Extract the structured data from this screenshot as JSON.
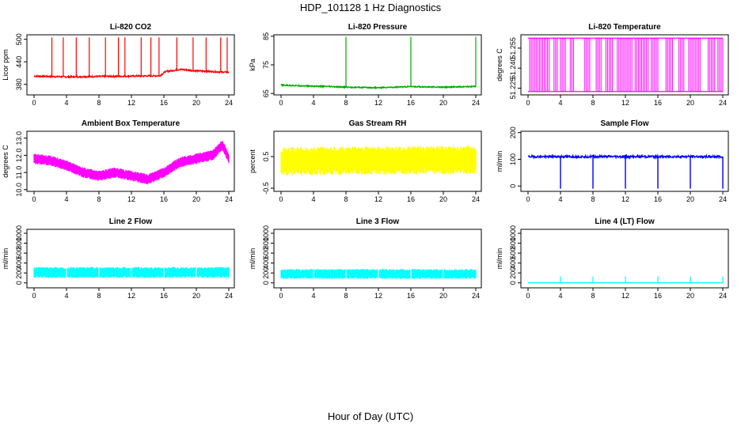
{
  "figure": {
    "title": "HDP_101128  1 Hz Diagnostics",
    "xlabel": "Hour of Day (UTC)"
  },
  "chart_data": [
    {
      "type": "line",
      "title": "Li-820 CO2",
      "ylabel": "Licor ppm",
      "color": "#ff0000",
      "xlim": [
        0,
        24
      ],
      "ylim": [
        352,
        512
      ],
      "xticks": [
        "0",
        "4",
        "8",
        "12",
        "16",
        "20",
        "24"
      ],
      "yticks": [
        "380",
        "440",
        "500"
      ],
      "baseline": [
        [
          0,
          402
        ],
        [
          4,
          400
        ],
        [
          8,
          401
        ],
        [
          12,
          402
        ],
        [
          15.5,
          403
        ],
        [
          16.2,
          414
        ],
        [
          18,
          420
        ],
        [
          20,
          416
        ],
        [
          24,
          412
        ]
      ],
      "spikes": [
        2.2,
        3.6,
        5.2,
        6.8,
        8.8,
        10.4,
        11.2,
        13.2,
        14.4,
        15.4,
        17.6,
        19.6,
        21.2,
        23.0,
        23.8
      ],
      "spike_peak": 505,
      "noise": 2
    },
    {
      "type": "line",
      "title": "Li-820 Pressure",
      "ylabel": "kPa",
      "color": "#00aa00",
      "xlim": [
        0,
        24
      ],
      "ylim": [
        64.5,
        85.5
      ],
      "xticks": [
        "0",
        "4",
        "8",
        "12",
        "16",
        "20",
        "24"
      ],
      "yticks": [
        "65",
        "75",
        "85"
      ],
      "baseline": [
        [
          0,
          67.9
        ],
        [
          8,
          67.2
        ],
        [
          12,
          67.0
        ],
        [
          16,
          67.4
        ],
        [
          20,
          67.2
        ],
        [
          24,
          67.4
        ]
      ],
      "spikes": [
        8.0,
        16.0,
        24.0
      ],
      "spike_peak": 84.8,
      "noise": 0.2
    },
    {
      "type": "band",
      "title": "Li-820 Temperature",
      "ylabel": "degrees C",
      "color": "#ff00ff",
      "xlim": [
        0,
        24
      ],
      "ylim": [
        51.22,
        51.265
      ],
      "xticks": [
        "0",
        "4",
        "8",
        "12",
        "16",
        "20",
        "24"
      ],
      "yticks": [
        "51.225",
        "51.240",
        "51.255"
      ],
      "level_high": 51.2625,
      "level_low": 51.2225,
      "dropouts": [
        [
          0.2,
          0.8
        ],
        [
          1.0,
          1.6
        ],
        [
          1.8,
          2.6
        ],
        [
          3.2,
          3.6
        ],
        [
          4.0,
          4.6
        ],
        [
          5.2,
          5.6
        ],
        [
          7.0,
          7.6
        ],
        [
          8.4,
          9.0
        ],
        [
          9.6,
          10.4
        ],
        [
          11.0,
          12.8
        ],
        [
          13.2,
          14.8
        ],
        [
          15.2,
          16.0
        ],
        [
          17.0,
          17.8
        ],
        [
          18.6,
          19.2
        ],
        [
          19.8,
          21.2
        ],
        [
          22.2,
          23.0
        ],
        [
          23.4,
          24.0
        ]
      ]
    },
    {
      "type": "band",
      "title": "Ambient Box Temperature",
      "ylabel": "degrees C",
      "color": "#ff00ff",
      "xlim": [
        0,
        24
      ],
      "ylim": [
        9.9,
        13.4
      ],
      "xticks": [
        "0",
        "4",
        "8",
        "12",
        "16",
        "20",
        "24"
      ],
      "yticks": [
        "10.0",
        "11.0",
        "12.0",
        "13.0"
      ],
      "center": [
        [
          0,
          11.8
        ],
        [
          2,
          11.7
        ],
        [
          4,
          11.4
        ],
        [
          6,
          11.0
        ],
        [
          8,
          10.8
        ],
        [
          10,
          11.0
        ],
        [
          12,
          10.8
        ],
        [
          14,
          10.6
        ],
        [
          16,
          11.0
        ],
        [
          18,
          11.6
        ],
        [
          20,
          11.8
        ],
        [
          22,
          12.0
        ],
        [
          23.2,
          12.6
        ],
        [
          24,
          11.8
        ]
      ],
      "half_width": 0.3
    },
    {
      "type": "band",
      "title": "Gas Stream RH",
      "ylabel": "percent",
      "color": "#ffff00",
      "xlim": [
        0,
        24
      ],
      "ylim": [
        -0.6,
        1.3
      ],
      "xticks": [
        "0",
        "4",
        "8",
        "12",
        "16",
        "20",
        "24"
      ],
      "yticks": [
        "-0.5",
        "0.5"
      ],
      "center": [
        [
          0,
          0.35
        ],
        [
          24,
          0.4
        ]
      ],
      "half_width": 0.45
    },
    {
      "type": "line",
      "title": "Sample Flow",
      "ylabel": "ml/min",
      "color": "#0000ff",
      "xlim": [
        0,
        24
      ],
      "ylim": [
        -20,
        205
      ],
      "xticks": [
        "0",
        "4",
        "8",
        "12",
        "16",
        "20",
        "24"
      ],
      "yticks": [
        "0",
        "100",
        "200"
      ],
      "baseline": [
        [
          0,
          110
        ],
        [
          24,
          110
        ]
      ],
      "dips": [
        4,
        8,
        12,
        16,
        20,
        24
      ],
      "dip_value": -10,
      "noise": 4
    },
    {
      "type": "band",
      "title": "Line 2 Flow",
      "ylabel": "ml/min",
      "color": "#00ffff",
      "xlim": [
        0,
        24
      ],
      "ylim": [
        -100,
        1080
      ],
      "xticks": [
        "0",
        "4",
        "8",
        "12",
        "16",
        "20",
        "24"
      ],
      "yticks": [
        "0",
        "200",
        "400",
        "600",
        "800",
        "1000"
      ],
      "center": [
        [
          0,
          210
        ],
        [
          24,
          210
        ]
      ],
      "half_width": 110,
      "gaps": [
        4,
        8,
        12,
        16,
        20
      ]
    },
    {
      "type": "band",
      "title": "Line 3 Flow",
      "ylabel": "ml/min",
      "color": "#00ffff",
      "xlim": [
        0,
        24
      ],
      "ylim": [
        -100,
        1080
      ],
      "xticks": [
        "0",
        "4",
        "8",
        "12",
        "16",
        "20",
        "24"
      ],
      "yticks": [
        "0",
        "200",
        "400",
        "600",
        "800",
        "1000"
      ],
      "center": [
        [
          0,
          180
        ],
        [
          24,
          180
        ]
      ],
      "half_width": 100,
      "gaps": [
        4,
        8,
        12,
        16,
        20
      ]
    },
    {
      "type": "line",
      "title": "Line 4 (LT) Flow",
      "ylabel": "ml/min",
      "color": "#00ffff",
      "xlim": [
        0,
        24
      ],
      "ylim": [
        -100,
        1080
      ],
      "xticks": [
        "0",
        "4",
        "8",
        "12",
        "16",
        "20",
        "24"
      ],
      "yticks": [
        "0",
        "200",
        "400",
        "600",
        "800",
        "1000"
      ],
      "baseline": [
        [
          0,
          2
        ],
        [
          24,
          2
        ]
      ],
      "spikes": [
        4,
        8,
        12,
        16,
        20,
        24
      ],
      "spike_peak": 130,
      "noise": 0
    }
  ]
}
